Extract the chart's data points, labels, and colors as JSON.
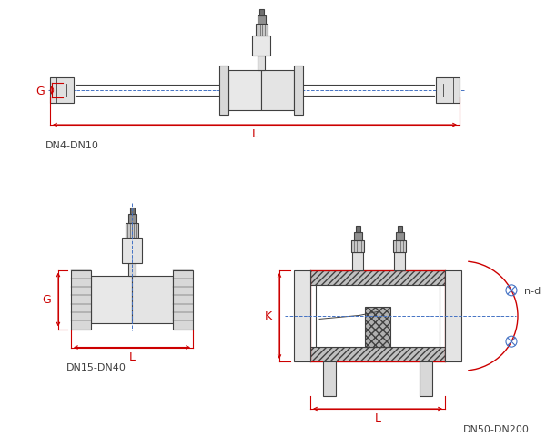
{
  "bg_color": "#ffffff",
  "line_color": "#404040",
  "red_color": "#cc0000",
  "blue_color": "#4472c4",
  "labels": {
    "top": "DN4-DN10",
    "bottom_left": "DN15-DN40",
    "bottom_right": "DN50-DN200",
    "G_top": "G",
    "L_top": "L",
    "G_bottom": "G",
    "L_bottom_left": "L",
    "K_label": "K",
    "L_bottom_right": "L",
    "nd_label": "n-d"
  },
  "figsize": [
    6.0,
    4.81
  ],
  "dpi": 100
}
